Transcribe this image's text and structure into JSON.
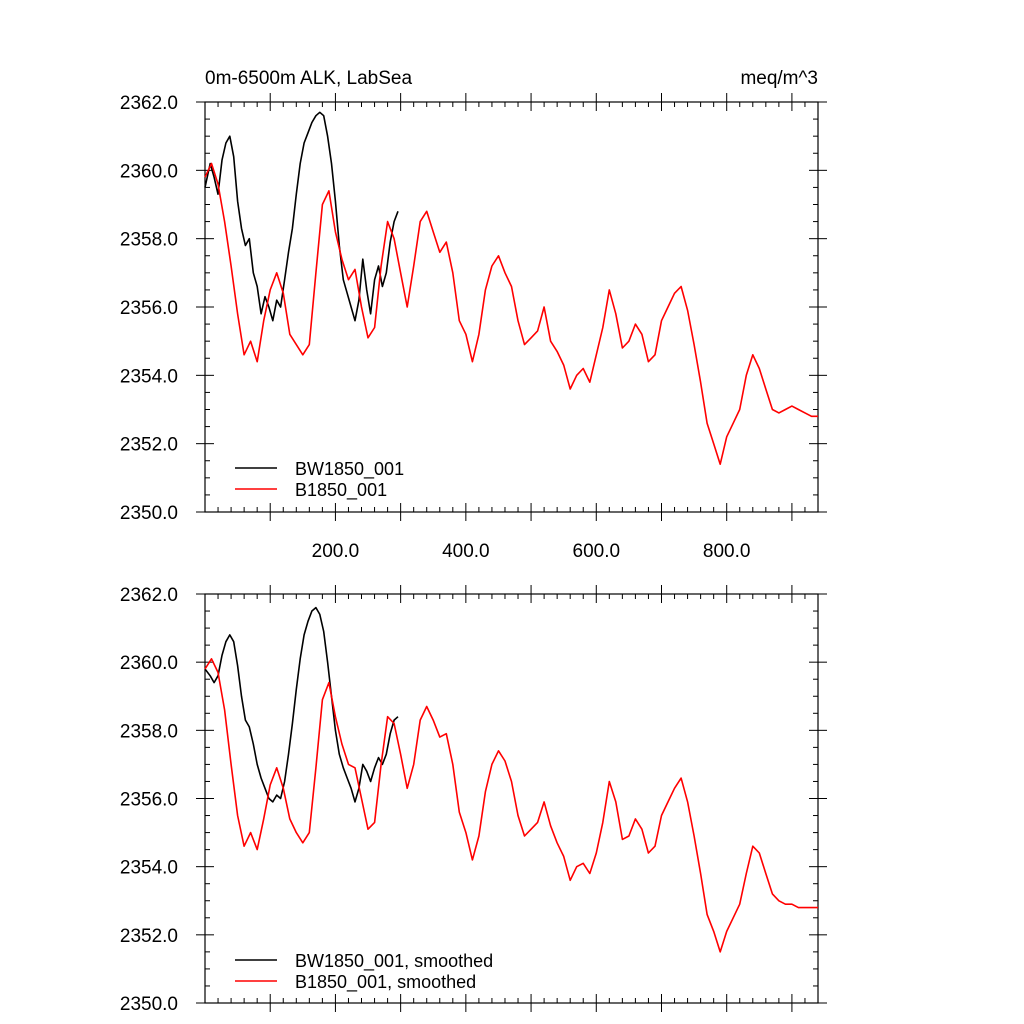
{
  "figure": {
    "title_left": "0m-6500m ALK, LabSea",
    "title_right": "meq/m^3"
  },
  "chart_data": [
    {
      "type": "line",
      "xlim": [
        0,
        940
      ],
      "ylim": [
        2350,
        2362
      ],
      "xticks": [
        200,
        400,
        600,
        800
      ],
      "xtick_labels": [
        "200.0",
        "400.0",
        "600.0",
        "800.0"
      ],
      "yticks": [
        2350,
        2352,
        2354,
        2356,
        2358,
        2360,
        2362
      ],
      "ytick_labels": [
        "2350.0",
        "2352.0",
        "2354.0",
        "2356.0",
        "2358.0",
        "2360.0",
        "2362.0"
      ],
      "legend_position": "bottom-left",
      "series": [
        {
          "name": "BW1850_001",
          "color": "#000000",
          "x": [
            0,
            8,
            14,
            20,
            26,
            32,
            38,
            44,
            50,
            56,
            62,
            68,
            74,
            80,
            86,
            92,
            98,
            104,
            110,
            116,
            122,
            128,
            134,
            140,
            146,
            152,
            158,
            164,
            170,
            176,
            182,
            188,
            194,
            200,
            206,
            212,
            218,
            224,
            230,
            236,
            242,
            248,
            254,
            260,
            266,
            272,
            278,
            284,
            290,
            296
          ],
          "y": [
            2359.5,
            2360.2,
            2359.8,
            2359.3,
            2360.3,
            2360.8,
            2361.0,
            2360.4,
            2359.1,
            2358.3,
            2357.8,
            2358.0,
            2357.0,
            2356.6,
            2355.8,
            2356.3,
            2356.0,
            2355.6,
            2356.2,
            2356.0,
            2356.8,
            2357.6,
            2358.3,
            2359.3,
            2360.2,
            2360.8,
            2361.1,
            2361.4,
            2361.6,
            2361.7,
            2361.6,
            2361.0,
            2360.2,
            2359.1,
            2357.8,
            2356.8,
            2356.4,
            2356.0,
            2355.6,
            2356.2,
            2357.4,
            2356.5,
            2355.8,
            2356.8,
            2357.2,
            2356.6,
            2357.0,
            2357.9,
            2358.5,
            2358.8
          ]
        },
        {
          "name": "B1850_001",
          "color": "#ff0000",
          "x": [
            0,
            10,
            20,
            30,
            40,
            50,
            60,
            70,
            80,
            90,
            100,
            110,
            120,
            130,
            140,
            150,
            160,
            170,
            180,
            190,
            200,
            210,
            220,
            230,
            240,
            250,
            260,
            270,
            280,
            290,
            300,
            310,
            320,
            330,
            340,
            350,
            360,
            370,
            380,
            390,
            400,
            410,
            420,
            430,
            440,
            450,
            460,
            470,
            480,
            490,
            500,
            510,
            520,
            530,
            540,
            550,
            560,
            570,
            580,
            590,
            600,
            610,
            620,
            630,
            640,
            650,
            660,
            670,
            680,
            690,
            700,
            710,
            720,
            730,
            740,
            750,
            760,
            770,
            780,
            790,
            800,
            810,
            820,
            830,
            840,
            850,
            860,
            870,
            880,
            890,
            900,
            910,
            920,
            930,
            940
          ],
          "y": [
            2359.8,
            2360.2,
            2359.6,
            2358.5,
            2357.2,
            2355.8,
            2354.6,
            2355.0,
            2354.4,
            2355.6,
            2356.5,
            2357.0,
            2356.4,
            2355.2,
            2354.9,
            2354.6,
            2354.9,
            2357.0,
            2359.0,
            2359.4,
            2358.2,
            2357.4,
            2356.8,
            2357.1,
            2356.0,
            2355.1,
            2355.4,
            2357.2,
            2358.5,
            2358.0,
            2357.0,
            2356.0,
            2357.2,
            2358.5,
            2358.8,
            2358.2,
            2357.6,
            2357.9,
            2357.0,
            2355.6,
            2355.2,
            2354.4,
            2355.2,
            2356.5,
            2357.2,
            2357.5,
            2357.0,
            2356.6,
            2355.6,
            2354.9,
            2355.1,
            2355.3,
            2356.0,
            2355.0,
            2354.7,
            2354.3,
            2353.6,
            2354.0,
            2354.2,
            2353.8,
            2354.6,
            2355.4,
            2356.5,
            2355.8,
            2354.8,
            2355.0,
            2355.5,
            2355.2,
            2354.4,
            2354.6,
            2355.6,
            2356.0,
            2356.4,
            2356.6,
            2355.9,
            2354.9,
            2353.8,
            2352.6,
            2352.0,
            2351.4,
            2352.2,
            2352.6,
            2353.0,
            2354.0,
            2354.6,
            2354.2,
            2353.6,
            2353.0,
            2352.9,
            2353.0,
            2353.1,
            2353.0,
            2352.9,
            2352.8,
            2352.8
          ]
        }
      ]
    },
    {
      "type": "line",
      "xlim": [
        0,
        940
      ],
      "ylim": [
        2350,
        2362
      ],
      "yticks": [
        2350,
        2352,
        2354,
        2356,
        2358,
        2360,
        2362
      ],
      "ytick_labels": [
        "2350.0",
        "2352.0",
        "2354.0",
        "2356.0",
        "2358.0",
        "2360.0",
        "2362.0"
      ],
      "legend_position": "bottom-left",
      "series": [
        {
          "name": "BW1850_001, smoothed",
          "color": "#000000",
          "x": [
            0,
            8,
            14,
            20,
            26,
            32,
            38,
            44,
            50,
            56,
            62,
            68,
            74,
            80,
            86,
            92,
            98,
            104,
            110,
            116,
            122,
            128,
            134,
            140,
            146,
            152,
            158,
            164,
            170,
            176,
            182,
            188,
            194,
            200,
            206,
            212,
            218,
            224,
            230,
            236,
            242,
            248,
            254,
            260,
            266,
            272,
            278,
            284,
            290,
            296
          ],
          "y": [
            2359.8,
            2359.6,
            2359.4,
            2359.6,
            2360.2,
            2360.6,
            2360.8,
            2360.6,
            2359.9,
            2359.0,
            2358.3,
            2358.1,
            2357.6,
            2357.0,
            2356.6,
            2356.3,
            2356.0,
            2355.9,
            2356.1,
            2356.0,
            2356.5,
            2357.3,
            2358.2,
            2359.2,
            2360.1,
            2360.8,
            2361.2,
            2361.5,
            2361.6,
            2361.4,
            2360.9,
            2360.0,
            2359.0,
            2358.0,
            2357.3,
            2356.9,
            2356.6,
            2356.3,
            2355.9,
            2356.3,
            2357.0,
            2356.8,
            2356.5,
            2356.9,
            2357.2,
            2357.0,
            2357.3,
            2357.9,
            2358.3,
            2358.4
          ]
        },
        {
          "name": "B1850_001, smoothed",
          "color": "#ff0000",
          "x": [
            0,
            10,
            20,
            30,
            40,
            50,
            60,
            70,
            80,
            90,
            100,
            110,
            120,
            130,
            140,
            150,
            160,
            170,
            180,
            190,
            200,
            210,
            220,
            230,
            240,
            250,
            260,
            270,
            280,
            290,
            300,
            310,
            320,
            330,
            340,
            350,
            360,
            370,
            380,
            390,
            400,
            410,
            420,
            430,
            440,
            450,
            460,
            470,
            480,
            490,
            500,
            510,
            520,
            530,
            540,
            550,
            560,
            570,
            580,
            590,
            600,
            610,
            620,
            630,
            640,
            650,
            660,
            670,
            680,
            690,
            700,
            710,
            720,
            730,
            740,
            750,
            760,
            770,
            780,
            790,
            800,
            810,
            820,
            830,
            840,
            850,
            860,
            870,
            880,
            890,
            900,
            910,
            920,
            930,
            940
          ],
          "y": [
            2359.8,
            2360.1,
            2359.7,
            2358.6,
            2357.0,
            2355.5,
            2354.6,
            2355.0,
            2354.5,
            2355.4,
            2356.4,
            2356.9,
            2356.3,
            2355.4,
            2355.0,
            2354.7,
            2355.0,
            2356.9,
            2358.9,
            2359.4,
            2358.4,
            2357.6,
            2357.0,
            2356.9,
            2356.0,
            2355.1,
            2355.3,
            2357.0,
            2358.4,
            2358.2,
            2357.3,
            2356.3,
            2357.0,
            2358.3,
            2358.7,
            2358.3,
            2357.8,
            2357.9,
            2357.0,
            2355.6,
            2355.0,
            2354.2,
            2354.9,
            2356.2,
            2357.0,
            2357.4,
            2357.1,
            2356.5,
            2355.5,
            2354.9,
            2355.1,
            2355.3,
            2355.9,
            2355.2,
            2354.7,
            2354.3,
            2353.6,
            2354.0,
            2354.1,
            2353.8,
            2354.4,
            2355.3,
            2356.5,
            2355.9,
            2354.8,
            2354.9,
            2355.4,
            2355.1,
            2354.4,
            2354.6,
            2355.5,
            2355.9,
            2356.3,
            2356.6,
            2355.9,
            2354.9,
            2353.8,
            2352.6,
            2352.1,
            2351.5,
            2352.1,
            2352.5,
            2352.9,
            2353.8,
            2354.6,
            2354.4,
            2353.8,
            2353.2,
            2353.0,
            2352.9,
            2352.9,
            2352.8,
            2352.8,
            2352.8,
            2352.8
          ]
        }
      ]
    }
  ]
}
